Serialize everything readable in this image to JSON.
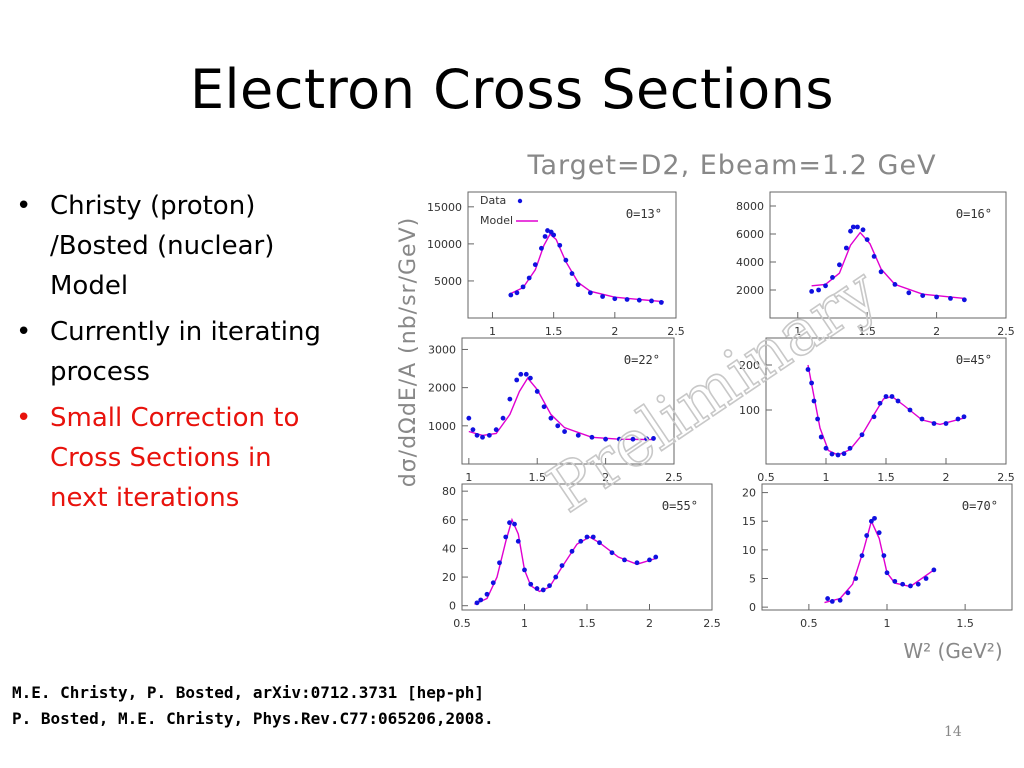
{
  "slide": {
    "title": "Electron Cross Sections",
    "bullets": [
      {
        "line1": "Christy (proton)",
        "line2": "/Bosted  (nuclear)",
        "line3": "Model",
        "color": "#000000"
      },
      {
        "line1": "Currently in iterating",
        "line2": "process",
        "color": "#000000"
      },
      {
        "line1": "Small Correction to",
        "line2": "Cross Sections in",
        "line3": "next iterations",
        "color": "#e8120c"
      }
    ],
    "references": [
      "M.E. Christy, P. Bosted, arXiv:0712.3731 [hep-ph]",
      "P. Bosted, M.E. Christy, Phys.Rev.C77:065206,2008."
    ],
    "page_number": "14"
  },
  "chart_data": {
    "type": "scatter",
    "title": "Target=D2, Ebeam=1.2 GeV",
    "ylabel": "dσ/dΩdE/A  (nb/sr/GeV)",
    "xlabel": "W² (GeV²)",
    "watermark": "Preliminary",
    "legend": {
      "data": "Data",
      "model": "Model",
      "placement": "top-left of first panel"
    },
    "colors": {
      "data": "#1010e0",
      "model": "#e000d0",
      "axis": "#666666"
    },
    "panels": [
      {
        "label": "Θ=13°",
        "xlim": [
          0.8,
          2.5
        ],
        "xticks": [
          "1",
          "1.5",
          "2",
          "2.5"
        ],
        "xtickvals": [
          1,
          1.5,
          2,
          2.5
        ],
        "ylim": [
          0,
          17000
        ],
        "yticks": [
          "5000",
          "10000",
          "15000"
        ],
        "ytickvals": [
          5000,
          10000,
          15000
        ],
        "data": [
          [
            1.15,
            3100
          ],
          [
            1.2,
            3400
          ],
          [
            1.25,
            4200
          ],
          [
            1.3,
            5400
          ],
          [
            1.35,
            7200
          ],
          [
            1.4,
            9400
          ],
          [
            1.43,
            11000
          ],
          [
            1.45,
            11800
          ],
          [
            1.48,
            11600
          ],
          [
            1.5,
            11200
          ],
          [
            1.55,
            9800
          ],
          [
            1.6,
            7800
          ],
          [
            1.65,
            6000
          ],
          [
            1.7,
            4500
          ],
          [
            1.8,
            3400
          ],
          [
            1.9,
            2900
          ],
          [
            2.0,
            2600
          ],
          [
            2.1,
            2500
          ],
          [
            2.2,
            2400
          ],
          [
            2.3,
            2300
          ],
          [
            2.38,
            2100
          ]
        ],
        "model": [
          [
            1.15,
            3300
          ],
          [
            1.25,
            4100
          ],
          [
            1.35,
            6500
          ],
          [
            1.42,
            9800
          ],
          [
            1.47,
            11300
          ],
          [
            1.52,
            10600
          ],
          [
            1.6,
            7600
          ],
          [
            1.7,
            4800
          ],
          [
            1.8,
            3600
          ],
          [
            2.0,
            2800
          ],
          [
            2.2,
            2500
          ],
          [
            2.4,
            2200
          ]
        ]
      },
      {
        "label": "Θ=16°",
        "xlim": [
          0.8,
          2.5
        ],
        "xticks": [
          "1",
          "1.5",
          "2",
          "2.5"
        ],
        "xtickvals": [
          1,
          1.5,
          2,
          2.5
        ],
        "ylim": [
          0,
          9000
        ],
        "yticks": [
          "2000",
          "4000",
          "6000",
          "8000"
        ],
        "ytickvals": [
          2000,
          4000,
          6000,
          8000
        ],
        "data": [
          [
            1.1,
            1900
          ],
          [
            1.15,
            2000
          ],
          [
            1.2,
            2300
          ],
          [
            1.25,
            2900
          ],
          [
            1.3,
            3800
          ],
          [
            1.35,
            5000
          ],
          [
            1.38,
            6200
          ],
          [
            1.4,
            6500
          ],
          [
            1.43,
            6500
          ],
          [
            1.47,
            6300
          ],
          [
            1.5,
            5600
          ],
          [
            1.55,
            4400
          ],
          [
            1.6,
            3300
          ],
          [
            1.7,
            2400
          ],
          [
            1.8,
            1800
          ],
          [
            1.9,
            1600
          ],
          [
            2.0,
            1500
          ],
          [
            2.1,
            1400
          ],
          [
            2.2,
            1300
          ]
        ],
        "model": [
          [
            1.1,
            2300
          ],
          [
            1.2,
            2400
          ],
          [
            1.3,
            3200
          ],
          [
            1.38,
            5200
          ],
          [
            1.45,
            6100
          ],
          [
            1.52,
            5300
          ],
          [
            1.6,
            3500
          ],
          [
            1.7,
            2400
          ],
          [
            1.9,
            1700
          ],
          [
            2.2,
            1400
          ]
        ]
      },
      {
        "label": "Θ=22°",
        "xlim": [
          0.95,
          2.5
        ],
        "xticks": [
          "1",
          "1.5",
          "2",
          "2.5"
        ],
        "xtickvals": [
          1,
          1.5,
          2,
          2.5
        ],
        "ylim": [
          0,
          3300
        ],
        "yticks": [
          "1000",
          "2000",
          "3000"
        ],
        "ytickvals": [
          1000,
          2000,
          3000
        ],
        "data": [
          [
            1.0,
            1200
          ],
          [
            1.03,
            900
          ],
          [
            1.06,
            750
          ],
          [
            1.1,
            700
          ],
          [
            1.15,
            750
          ],
          [
            1.2,
            900
          ],
          [
            1.25,
            1200
          ],
          [
            1.3,
            1700
          ],
          [
            1.35,
            2200
          ],
          [
            1.38,
            2350
          ],
          [
            1.42,
            2350
          ],
          [
            1.45,
            2250
          ],
          [
            1.5,
            1900
          ],
          [
            1.55,
            1500
          ],
          [
            1.6,
            1200
          ],
          [
            1.65,
            1000
          ],
          [
            1.7,
            850
          ],
          [
            1.8,
            750
          ],
          [
            1.9,
            700
          ],
          [
            2.0,
            650
          ],
          [
            2.1,
            650
          ],
          [
            2.2,
            650
          ],
          [
            2.3,
            660
          ],
          [
            2.35,
            670
          ]
        ],
        "model": [
          [
            1.0,
            850
          ],
          [
            1.1,
            750
          ],
          [
            1.2,
            800
          ],
          [
            1.3,
            1300
          ],
          [
            1.37,
            1900
          ],
          [
            1.43,
            2250
          ],
          [
            1.5,
            1950
          ],
          [
            1.6,
            1300
          ],
          [
            1.7,
            950
          ],
          [
            1.9,
            700
          ],
          [
            2.1,
            650
          ],
          [
            2.35,
            640
          ]
        ]
      },
      {
        "label": "Θ=45°",
        "xlim": [
          0.5,
          2.5
        ],
        "xticks": [
          "0.5",
          "1",
          "1.5",
          "2",
          "2.5"
        ],
        "xtickvals": [
          0.5,
          1,
          1.5,
          2,
          2.5
        ],
        "ylim": [
          -20,
          260
        ],
        "yticks": [
          "100",
          "200"
        ],
        "ytickvals": [
          100,
          200
        ],
        "data": [
          [
            0.85,
            190
          ],
          [
            0.88,
            160
          ],
          [
            0.9,
            120
          ],
          [
            0.93,
            80
          ],
          [
            0.96,
            40
          ],
          [
            1.0,
            15
          ],
          [
            1.05,
            2
          ],
          [
            1.1,
            0
          ],
          [
            1.15,
            3
          ],
          [
            1.2,
            15
          ],
          [
            1.3,
            45
          ],
          [
            1.4,
            85
          ],
          [
            1.45,
            115
          ],
          [
            1.5,
            130
          ],
          [
            1.55,
            130
          ],
          [
            1.6,
            120
          ],
          [
            1.7,
            100
          ],
          [
            1.8,
            80
          ],
          [
            1.9,
            70
          ],
          [
            2.0,
            70
          ],
          [
            2.1,
            80
          ],
          [
            2.15,
            85
          ]
        ],
        "model": [
          [
            0.85,
            200
          ],
          [
            0.9,
            130
          ],
          [
            0.95,
            60
          ],
          [
            1.02,
            10
          ],
          [
            1.1,
            0
          ],
          [
            1.2,
            12
          ],
          [
            1.3,
            45
          ],
          [
            1.4,
            90
          ],
          [
            1.48,
            125
          ],
          [
            1.55,
            130
          ],
          [
            1.65,
            110
          ],
          [
            1.8,
            78
          ],
          [
            1.95,
            68
          ],
          [
            2.15,
            82
          ]
        ]
      },
      {
        "label": "Θ=55°",
        "xlim": [
          0.5,
          2.5
        ],
        "xticks": [
          "0.5",
          "1",
          "1.5",
          "2",
          "2.5"
        ],
        "xtickvals": [
          0.5,
          1,
          1.5,
          2,
          2.5
        ],
        "ylim": [
          -3,
          85
        ],
        "yticks": [
          "0",
          "20",
          "40",
          "60",
          "80"
        ],
        "ytickvals": [
          0,
          20,
          40,
          60,
          80
        ],
        "data": [
          [
            0.62,
            2
          ],
          [
            0.65,
            4
          ],
          [
            0.7,
            8
          ],
          [
            0.75,
            16
          ],
          [
            0.8,
            30
          ],
          [
            0.85,
            48
          ],
          [
            0.88,
            58
          ],
          [
            0.92,
            57
          ],
          [
            0.95,
            45
          ],
          [
            1.0,
            25
          ],
          [
            1.05,
            15
          ],
          [
            1.1,
            12
          ],
          [
            1.15,
            11
          ],
          [
            1.2,
            14
          ],
          [
            1.25,
            20
          ],
          [
            1.3,
            28
          ],
          [
            1.38,
            38
          ],
          [
            1.45,
            45
          ],
          [
            1.5,
            48
          ],
          [
            1.55,
            48
          ],
          [
            1.6,
            44
          ],
          [
            1.7,
            37
          ],
          [
            1.8,
            32
          ],
          [
            1.9,
            30
          ],
          [
            2.0,
            32
          ],
          [
            2.05,
            34
          ]
        ],
        "model": [
          [
            0.6,
            1
          ],
          [
            0.7,
            5
          ],
          [
            0.78,
            20
          ],
          [
            0.85,
            45
          ],
          [
            0.9,
            60
          ],
          [
            0.95,
            50
          ],
          [
            1.0,
            25
          ],
          [
            1.05,
            14
          ],
          [
            1.12,
            10
          ],
          [
            1.2,
            13
          ],
          [
            1.3,
            27
          ],
          [
            1.42,
            43
          ],
          [
            1.52,
            48
          ],
          [
            1.6,
            44
          ],
          [
            1.75,
            34
          ],
          [
            1.9,
            29
          ],
          [
            2.05,
            33
          ]
        ]
      },
      {
        "label": "Θ=70°",
        "xlim": [
          0.2,
          1.8
        ],
        "xticks": [
          "0.5",
          "1",
          "1.5"
        ],
        "xtickvals": [
          0.5,
          1,
          1.5
        ],
        "ylim": [
          -0.5,
          21.5
        ],
        "yticks": [
          "0",
          "5",
          "10",
          "15",
          "20"
        ],
        "ytickvals": [
          0,
          5,
          10,
          15,
          20
        ],
        "data": [
          [
            0.62,
            1.5
          ],
          [
            0.65,
            1
          ],
          [
            0.7,
            1.2
          ],
          [
            0.75,
            2.5
          ],
          [
            0.8,
            5
          ],
          [
            0.84,
            9
          ],
          [
            0.87,
            12.5
          ],
          [
            0.9,
            15
          ],
          [
            0.92,
            15.5
          ],
          [
            0.95,
            13
          ],
          [
            0.98,
            9
          ],
          [
            1.0,
            6
          ],
          [
            1.05,
            4.5
          ],
          [
            1.1,
            4
          ],
          [
            1.15,
            3.7
          ],
          [
            1.2,
            4
          ],
          [
            1.25,
            5
          ],
          [
            1.3,
            6.5
          ]
        ],
        "model": [
          [
            0.6,
            0.8
          ],
          [
            0.7,
            1.5
          ],
          [
            0.78,
            4
          ],
          [
            0.85,
            10
          ],
          [
            0.9,
            15
          ],
          [
            0.95,
            12
          ],
          [
            1.0,
            6
          ],
          [
            1.05,
            4.2
          ],
          [
            1.15,
            3.6
          ],
          [
            1.3,
            6.5
          ]
        ]
      }
    ]
  }
}
